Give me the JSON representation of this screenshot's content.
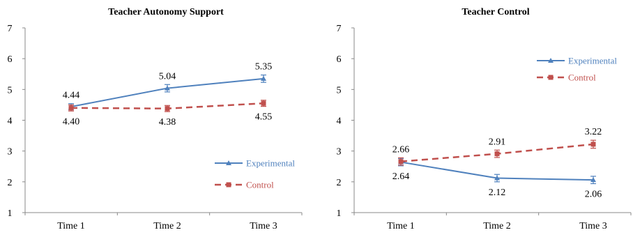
{
  "chart_data": [
    {
      "type": "line",
      "title": "Teacher Autonomy Support",
      "xlabel": "",
      "ylabel": "",
      "categories": [
        "Time 1",
        "Time 2",
        "Time 3"
      ],
      "ylim": [
        1,
        7
      ],
      "yticks": [
        1,
        2,
        3,
        4,
        5,
        6,
        7
      ],
      "grid": false,
      "legend_position": "bottom-right",
      "series": [
        {
          "name": "Experimental",
          "values": [
            4.44,
            5.04,
            5.35
          ],
          "error": [
            0.1,
            0.12,
            0.12
          ],
          "labels": [
            "4.44",
            "5.04",
            "5.35"
          ],
          "label_side": "above",
          "color": "#4f81bd",
          "style": "solid",
          "marker": "triangle"
        },
        {
          "name": "Control",
          "values": [
            4.4,
            4.38,
            4.55
          ],
          "error": [
            0.1,
            0.1,
            0.1
          ],
          "labels": [
            "4.40",
            "4.38",
            "4.55"
          ],
          "label_side": "below",
          "color": "#c0504d",
          "style": "dashed",
          "marker": "square"
        }
      ]
    },
    {
      "type": "line",
      "title": "Teacher Control",
      "xlabel": "",
      "ylabel": "",
      "categories": [
        "Time 1",
        "Time 2",
        "Time 3"
      ],
      "ylim": [
        1,
        7
      ],
      "yticks": [
        1,
        2,
        3,
        4,
        5,
        6,
        7
      ],
      "grid": false,
      "legend_position": "top-right",
      "series": [
        {
          "name": "Experimental",
          "values": [
            2.64,
            2.12,
            2.06
          ],
          "error": [
            0.12,
            0.12,
            0.12
          ],
          "labels": [
            "2.64",
            "2.12",
            "2.06"
          ],
          "label_side": "below",
          "color": "#4f81bd",
          "style": "solid",
          "marker": "triangle"
        },
        {
          "name": "Control",
          "values": [
            2.66,
            2.91,
            3.22
          ],
          "error": [
            0.12,
            0.12,
            0.13
          ],
          "labels": [
            "2.66",
            "2.91",
            "3.22"
          ],
          "label_side": "above",
          "color": "#c0504d",
          "style": "dashed",
          "marker": "square"
        }
      ]
    }
  ]
}
